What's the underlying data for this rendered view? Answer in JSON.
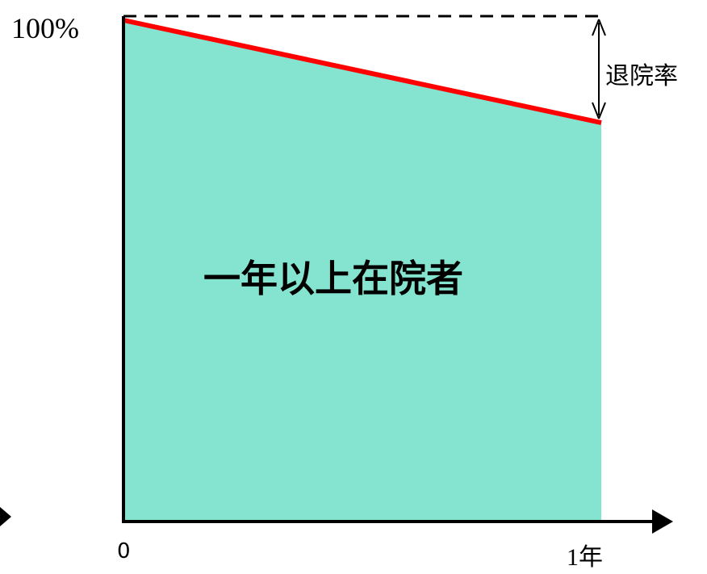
{
  "diagram": {
    "y_top_label": "100%",
    "x_origin_label": "0",
    "x_end_label": "1年",
    "gap_label": "退院率",
    "area_label": "一年以上在院者"
  },
  "colors": {
    "area_fill": "#84e4cf",
    "decline_line": "#ff0000",
    "axis": "#000000"
  }
}
